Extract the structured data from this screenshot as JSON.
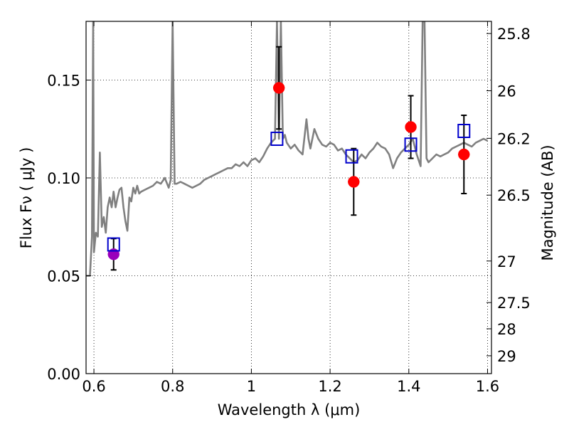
{
  "chart_data": {
    "type": "scatter",
    "title": "",
    "xlabel": "Wavelength  λ (μm)",
    "ylabel": "Flux  Fν  ( μJy )",
    "y2label": "Magnitude (AB)",
    "xlim": [
      0.58,
      1.61
    ],
    "ylim": [
      0.0,
      0.18
    ],
    "grid": true,
    "x_ticks": [
      0.6,
      0.8,
      1.0,
      1.2,
      1.4,
      1.6
    ],
    "x_tick_labels": [
      "0.6",
      "0.8",
      "1",
      "1.2",
      "1.4",
      "1.6"
    ],
    "y_ticks": [
      0.0,
      0.05,
      0.1,
      0.15
    ],
    "y_tick_labels": [
      "0.00",
      "0.05",
      "0.10",
      "0.15"
    ],
    "y2_ticks": [
      25.8,
      26.0,
      26.2,
      26.5,
      27.0,
      27.5,
      28.0,
      29.0
    ],
    "y2_tick_labels": [
      "25.8",
      "26",
      "26.2",
      "26.5",
      "27",
      "27.5",
      "28",
      "29"
    ],
    "colors": {
      "model_spectrum": "#808080",
      "observed": "#ff0000",
      "observed_optical": "#9900bb",
      "model_photometry": "#0000cc",
      "errorbar": "#000000"
    },
    "series": [
      {
        "type": "line",
        "x": [
          0.58,
          0.59,
          0.595,
          0.598,
          0.6,
          0.605,
          0.61,
          0.615,
          0.62,
          0.625,
          0.63,
          0.635,
          0.64,
          0.645,
          0.65,
          0.655,
          0.66,
          0.665,
          0.67,
          0.675,
          0.68,
          0.685,
          0.69,
          0.695,
          0.7,
          0.705,
          0.71,
          0.715,
          0.72,
          0.73,
          0.74,
          0.75,
          0.76,
          0.77,
          0.78,
          0.79,
          0.795,
          0.8,
          0.805,
          0.81,
          0.82,
          0.83,
          0.84,
          0.85,
          0.86,
          0.87,
          0.88,
          0.89,
          0.9,
          0.91,
          0.92,
          0.93,
          0.94,
          0.95,
          0.96,
          0.97,
          0.98,
          0.99,
          1.0,
          1.01,
          1.02,
          1.03,
          1.04,
          1.05,
          1.06,
          1.065,
          1.07,
          1.075,
          1.08,
          1.085,
          1.09,
          1.1,
          1.11,
          1.12,
          1.13,
          1.14,
          1.145,
          1.15,
          1.16,
          1.17,
          1.18,
          1.19,
          1.2,
          1.21,
          1.22,
          1.23,
          1.24,
          1.25,
          1.26,
          1.27,
          1.28,
          1.29,
          1.3,
          1.31,
          1.32,
          1.33,
          1.34,
          1.35,
          1.36,
          1.37,
          1.38,
          1.39,
          1.4,
          1.41,
          1.42,
          1.43,
          1.435,
          1.44,
          1.445,
          1.45,
          1.46,
          1.47,
          1.48,
          1.49,
          1.5,
          1.51,
          1.52,
          1.53,
          1.54,
          1.55,
          1.56,
          1.57,
          1.58,
          1.59,
          1.6
        ],
        "y": [
          0.05,
          0.05,
          0.07,
          0.18,
          0.062,
          0.072,
          0.07,
          0.113,
          0.075,
          0.08,
          0.072,
          0.085,
          0.09,
          0.085,
          0.093,
          0.085,
          0.09,
          0.094,
          0.095,
          0.085,
          0.078,
          0.073,
          0.09,
          0.088,
          0.095,
          0.092,
          0.096,
          0.092,
          0.093,
          0.094,
          0.095,
          0.096,
          0.098,
          0.097,
          0.1,
          0.095,
          0.099,
          0.18,
          0.097,
          0.097,
          0.098,
          0.097,
          0.096,
          0.095,
          0.096,
          0.097,
          0.099,
          0.1,
          0.101,
          0.102,
          0.103,
          0.104,
          0.105,
          0.105,
          0.107,
          0.106,
          0.108,
          0.106,
          0.109,
          0.11,
          0.108,
          0.111,
          0.115,
          0.118,
          0.12,
          0.18,
          0.12,
          0.18,
          0.12,
          0.122,
          0.118,
          0.115,
          0.117,
          0.114,
          0.112,
          0.13,
          0.12,
          0.115,
          0.125,
          0.12,
          0.117,
          0.116,
          0.118,
          0.117,
          0.114,
          0.115,
          0.112,
          0.11,
          0.108,
          0.109,
          0.112,
          0.11,
          0.113,
          0.115,
          0.118,
          0.116,
          0.115,
          0.112,
          0.105,
          0.11,
          0.113,
          0.115,
          0.117,
          0.12,
          0.112,
          0.106,
          0.18,
          0.18,
          0.11,
          0.108,
          0.11,
          0.112,
          0.111,
          0.112,
          0.113,
          0.115,
          0.116,
          0.117,
          0.118,
          0.117,
          0.116,
          0.118,
          0.119,
          0.12,
          0.119
        ]
      },
      {
        "type": "scatter-errorbar",
        "x": [
          0.65,
          1.07,
          1.26,
          1.405,
          1.54
        ],
        "y": [
          0.061,
          0.146,
          0.098,
          0.126,
          0.112
        ],
        "yerr": [
          0.008,
          0.021,
          0.017,
          0.016,
          0.02
        ]
      },
      {
        "type": "scatter",
        "x": [
          0.65,
          1.065,
          1.255,
          1.405,
          1.54
        ],
        "y": [
          0.066,
          0.12,
          0.111,
          0.117,
          0.124
        ]
      }
    ]
  }
}
